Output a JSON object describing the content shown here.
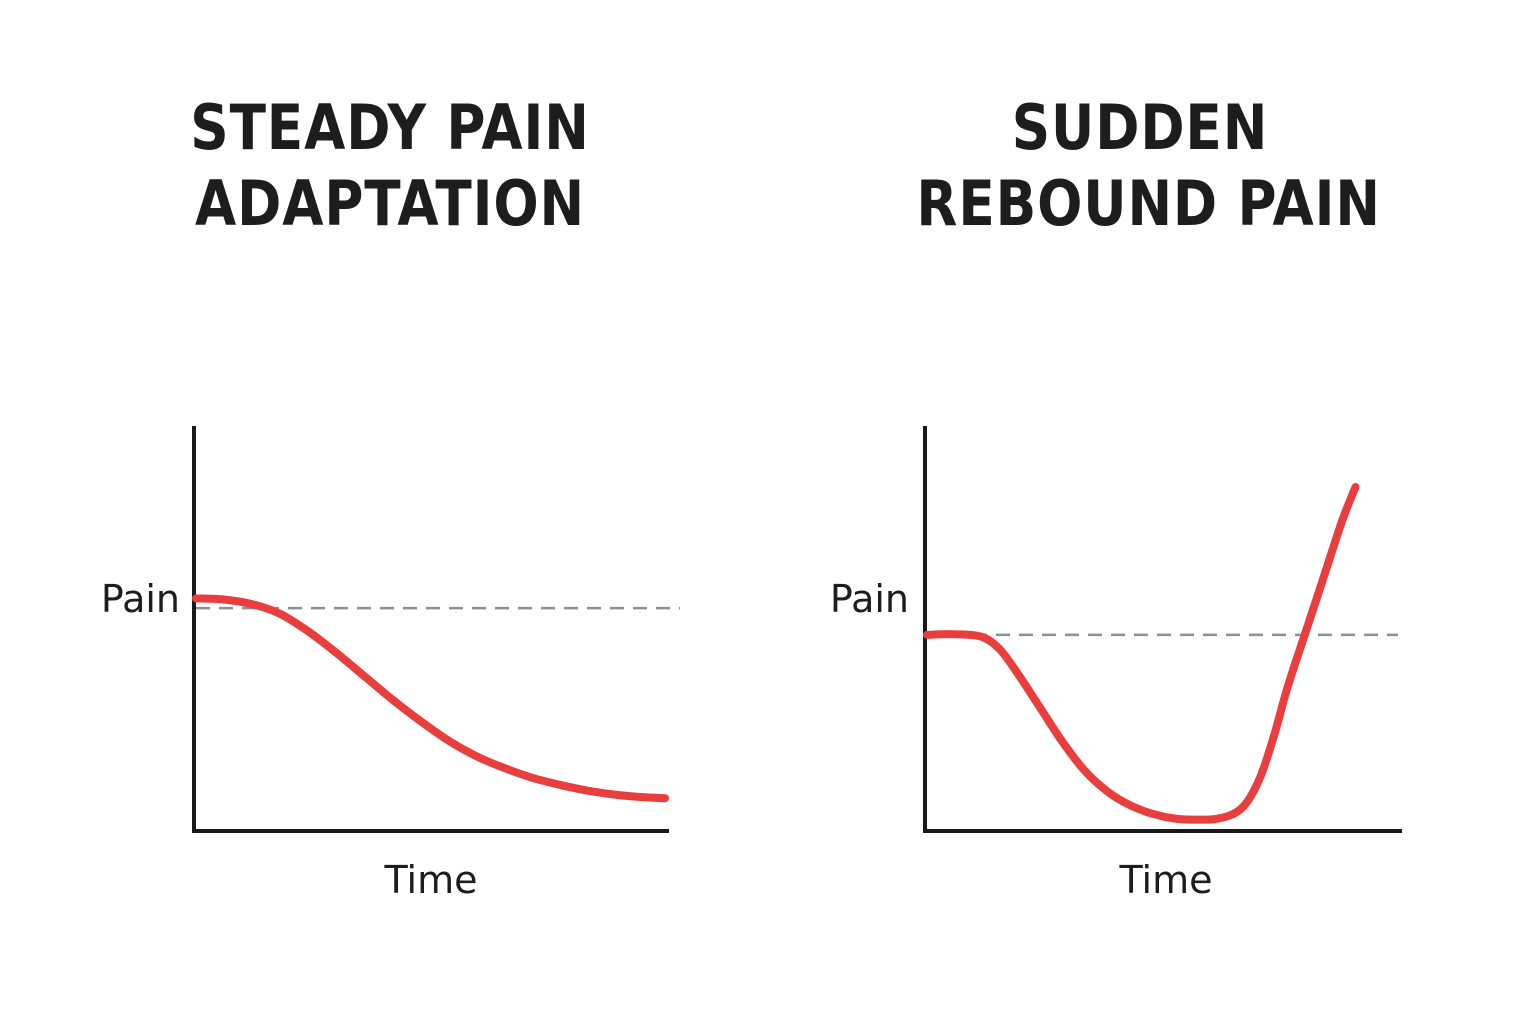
{
  "chart_data": [
    {
      "type": "line",
      "title_lines": [
        "STEADY PAIN",
        "ADAPTATION"
      ],
      "xlabel": "Time",
      "reference_label": "Pain",
      "xlim": [
        0,
        10
      ],
      "ylim": [
        0,
        10
      ],
      "reference_value": 5.7,
      "series": [
        {
          "color": "#e93e3e",
          "x": [
            0,
            0.6,
            1.2,
            1.8,
            2.4,
            3.0,
            3.6,
            4.2,
            4.8,
            5.4,
            6.0,
            6.6,
            7.2,
            7.8,
            8.4,
            9.0,
            9.6,
            10.0
          ],
          "y": [
            5.95,
            5.92,
            5.8,
            5.55,
            5.1,
            4.55,
            3.95,
            3.35,
            2.8,
            2.3,
            1.9,
            1.6,
            1.35,
            1.17,
            1.02,
            0.92,
            0.86,
            0.84
          ]
        }
      ]
    },
    {
      "type": "line",
      "title_lines": [
        "SUDDEN",
        "REBOUND PAIN"
      ],
      "xlabel": "Time",
      "reference_label": "Pain",
      "xlim": [
        0,
        10
      ],
      "ylim": [
        0,
        10
      ],
      "reference_value": 5.7,
      "series": [
        {
          "color": "#e93e3e",
          "x": [
            0,
            0.6,
            1.2,
            1.6,
            2.0,
            2.5,
            3.0,
            3.5,
            4.0,
            4.5,
            5.0,
            5.5,
            6.0,
            6.4,
            6.8,
            7.1,
            7.4,
            7.7,
            8.0,
            8.4,
            8.8,
            9.2,
            9.5
          ],
          "y": [
            5.7,
            5.72,
            5.65,
            5.3,
            4.6,
            3.6,
            2.6,
            1.75,
            1.15,
            0.75,
            0.5,
            0.36,
            0.33,
            0.35,
            0.5,
            0.85,
            1.6,
            2.8,
            4.2,
            5.8,
            7.4,
            9.0,
            10.0
          ]
        }
      ]
    }
  ]
}
